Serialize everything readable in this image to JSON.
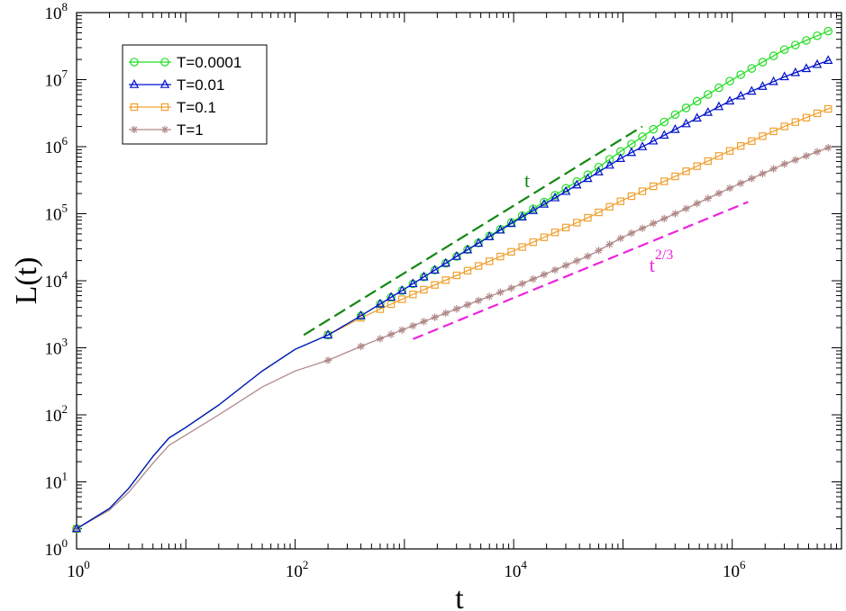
{
  "chart_data": {
    "type": "line",
    "title": "",
    "xlabel": "t",
    "ylabel": "L(t)",
    "xscale": "log",
    "yscale": "log",
    "xlim": [
      1,
      10000000
    ],
    "ylim": [
      1,
      100000000
    ],
    "x_ticks": [
      {
        "base": "10",
        "exp": "0",
        "value": 1
      },
      {
        "base": "10",
        "exp": "2",
        "value": 100
      },
      {
        "base": "10",
        "exp": "4",
        "value": 10000
      },
      {
        "base": "10",
        "exp": "6",
        "value": 1000000
      }
    ],
    "y_ticks": [
      {
        "base": "10",
        "exp": "0",
        "value": 1
      },
      {
        "base": "10",
        "exp": "1",
        "value": 10
      },
      {
        "base": "10",
        "exp": "2",
        "value": 100
      },
      {
        "base": "10",
        "exp": "3",
        "value": 1000
      },
      {
        "base": "10",
        "exp": "4",
        "value": 10000
      },
      {
        "base": "10",
        "exp": "5",
        "value": 100000
      },
      {
        "base": "10",
        "exp": "6",
        "value": 1000000
      },
      {
        "base": "10",
        "exp": "7",
        "value": 10000000
      },
      {
        "base": "10",
        "exp": "8",
        "value": 100000000
      }
    ],
    "legend_position": "top-left",
    "series": [
      {
        "name": "T=0.0001",
        "label": "T=0.0001",
        "color": "#22dd22",
        "marker": "circle",
        "early": {
          "x": [
            1,
            2,
            3,
            5,
            7,
            10,
            20,
            50,
            100,
            200
          ],
          "y": [
            2,
            4,
            8,
            24,
            45,
            65,
            140,
            450,
            950,
            1550
          ]
        },
        "markers_from": 200,
        "markers_to": 8000000,
        "anchors": {
          "x": [
            200,
            400,
            1000,
            3000,
            10000,
            50000,
            100000,
            300000,
            1000000,
            3000000,
            8000000
          ],
          "y": [
            1550,
            3000,
            7500,
            23000,
            78000,
            400000,
            900000,
            3000000,
            10000000,
            28000000,
            55000000
          ]
        }
      },
      {
        "name": "T=0.01",
        "label": "T=0.01",
        "color": "#0011cc",
        "marker": "triangle",
        "early": {
          "x": [
            1,
            2,
            3,
            5,
            7,
            10,
            20,
            50,
            100,
            200
          ],
          "y": [
            2,
            4,
            8,
            24,
            45,
            65,
            140,
            450,
            950,
            1550
          ]
        },
        "markers_from": 200,
        "markers_to": 8000000,
        "anchors": {
          "x": [
            200,
            400,
            1000,
            3000,
            10000,
            50000,
            100000,
            300000,
            1000000,
            3000000,
            8000000
          ],
          "y": [
            1550,
            3000,
            7500,
            23000,
            75000,
            350000,
            700000,
            1800000,
            5000000,
            11000000,
            20000000
          ]
        }
      },
      {
        "name": "T=0.1",
        "label": "T=0.1",
        "color": "#f0a030",
        "marker": "square",
        "early": {
          "x": [
            1,
            2,
            3,
            5,
            7,
            10,
            20,
            50,
            100,
            200
          ],
          "y": [
            2,
            4,
            8,
            24,
            45,
            65,
            140,
            450,
            950,
            1550
          ]
        },
        "markers_from": 200,
        "markers_to": 8000000,
        "anchors": {
          "x": [
            200,
            400,
            1000,
            3000,
            10000,
            50000,
            100000,
            300000,
            1000000,
            3000000,
            8000000
          ],
          "y": [
            1550,
            2800,
            5500,
            12000,
            28000,
            90000,
            160000,
            360000,
            900000,
            2000000,
            3800000
          ]
        }
      },
      {
        "name": "T=1",
        "label": "T=1",
        "color": "#b08888",
        "marker": "star",
        "early": {
          "x": [
            1,
            2,
            3,
            5,
            7,
            10,
            20,
            50,
            100,
            200
          ],
          "y": [
            2,
            3.8,
            7,
            19,
            35,
            50,
            100,
            260,
            450,
            650
          ]
        },
        "markers_from": 200,
        "markers_to": 8000000,
        "anchors": {
          "x": [
            200,
            400,
            1000,
            3000,
            10000,
            50000,
            100000,
            300000,
            1000000,
            3000000,
            8000000
          ],
          "y": [
            650,
            1050,
            1900,
            3800,
            8000,
            24000,
            45000,
            100000,
            250000,
            550000,
            1000000
          ]
        }
      }
    ],
    "guide_lines": [
      {
        "label": "t",
        "color": "#118811",
        "x": [
          120,
          150000
        ],
        "y": [
          1550,
          2000000
        ]
      },
      {
        "label": "t",
        "label_sup": "2/3",
        "color": "#ee22dd",
        "x": [
          1200,
          1400000
        ],
        "y": [
          1350,
          150000
        ]
      }
    ]
  }
}
